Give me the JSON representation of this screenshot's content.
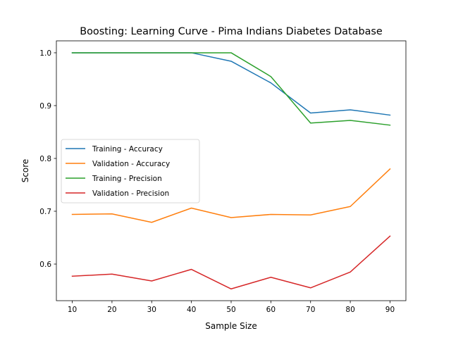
{
  "chart_data": {
    "type": "line",
    "title": "Boosting: Learning Curve - Pima Indians Diabetes Database",
    "xlabel": "Sample Size",
    "ylabel": "Score",
    "x": [
      10,
      20,
      30,
      40,
      50,
      60,
      70,
      80,
      90
    ],
    "xlim": [
      6.0,
      94.0
    ],
    "ylim": [
      0.5307,
      1.0226
    ],
    "xticks": [
      "10",
      "20",
      "30",
      "40",
      "50",
      "60",
      "70",
      "80",
      "90"
    ],
    "yticks": [
      "0.6",
      "0.7",
      "0.8",
      "0.9",
      "1.0"
    ],
    "grid": false,
    "legend_position": "center-left",
    "series": [
      {
        "name": "Training - Accuracy",
        "color": "#1f77b4",
        "values": [
          1.0,
          1.0,
          1.0,
          1.0,
          0.984,
          0.943,
          0.886,
          0.892,
          0.882
        ]
      },
      {
        "name": "Validation - Accuracy",
        "color": "#ff7f0e",
        "values": [
          0.694,
          0.695,
          0.679,
          0.706,
          0.688,
          0.694,
          0.693,
          0.709,
          0.78
        ]
      },
      {
        "name": "Training - Precision",
        "color": "#2ca02c",
        "values": [
          1.0,
          1.0,
          1.0,
          1.0,
          1.0,
          0.955,
          0.867,
          0.872,
          0.863
        ]
      },
      {
        "name": "Validation - Precision",
        "color": "#d62728",
        "values": [
          0.577,
          0.581,
          0.568,
          0.59,
          0.553,
          0.575,
          0.555,
          0.585,
          0.653
        ]
      }
    ]
  }
}
